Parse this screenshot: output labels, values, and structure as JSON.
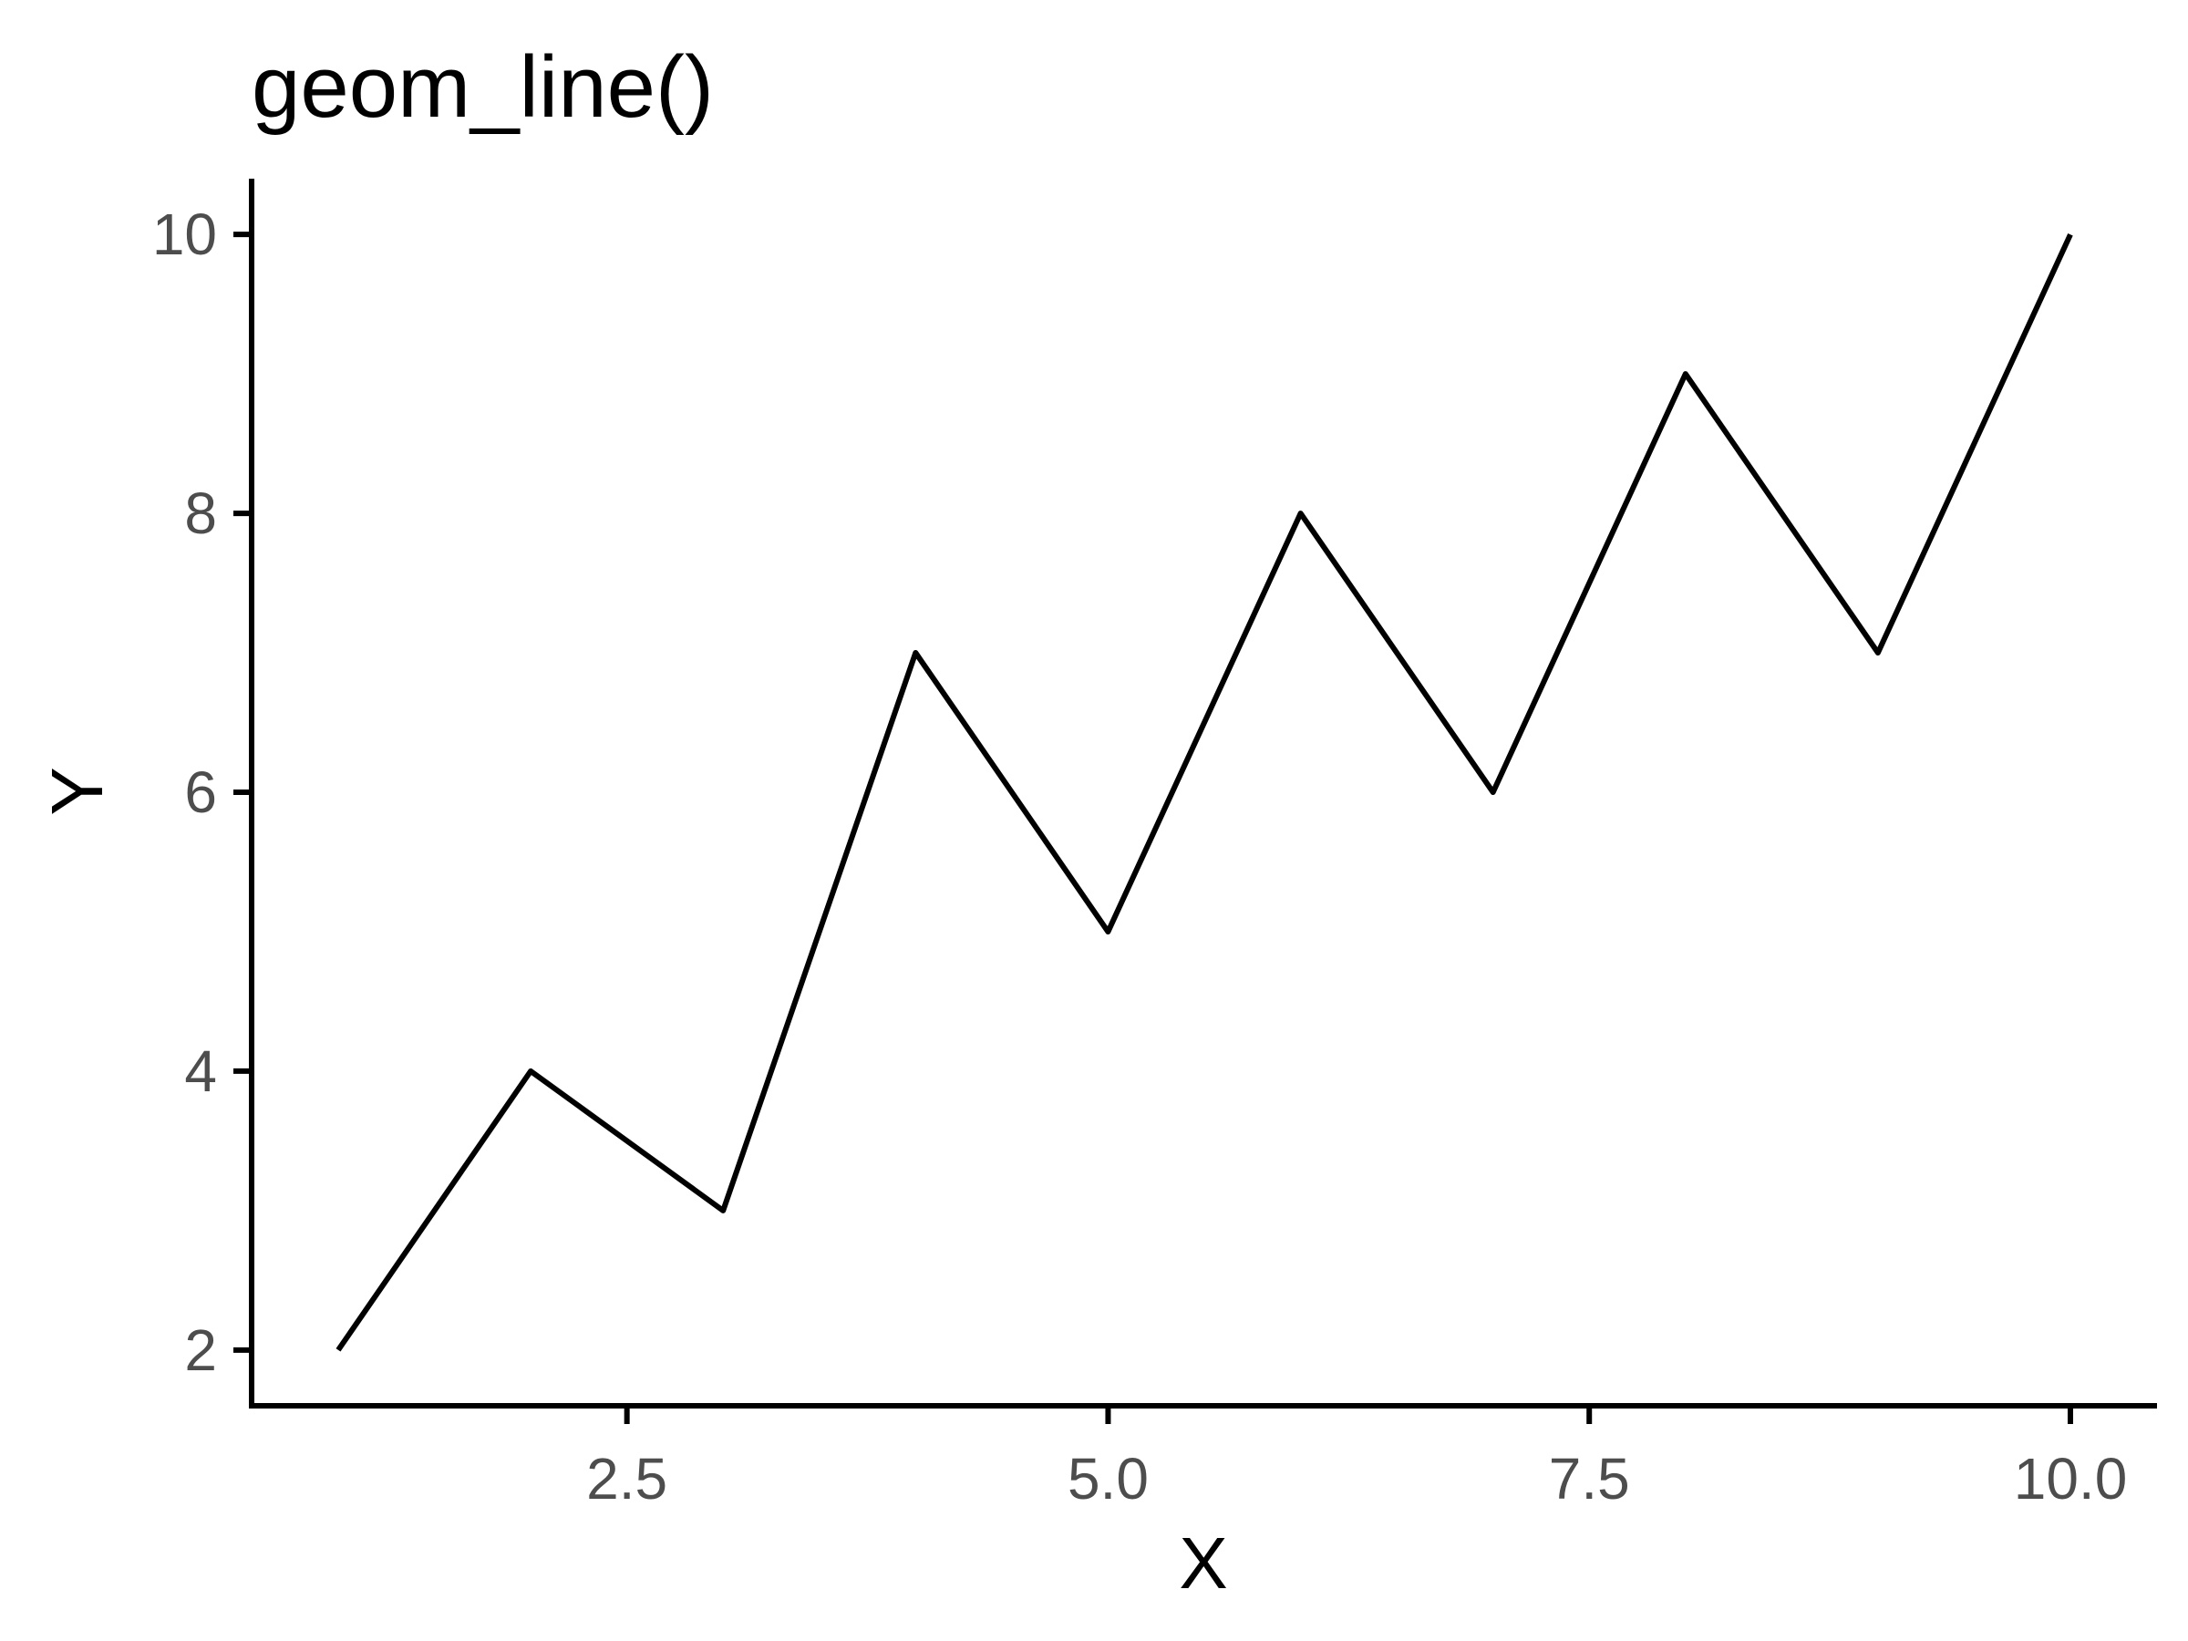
{
  "chart_data": {
    "type": "line",
    "title": "geom_line()",
    "xlabel": "X",
    "ylabel": "Y",
    "x": [
      1,
      2,
      3,
      4,
      5,
      6,
      7,
      8,
      9,
      10
    ],
    "series": [
      {
        "values": [
          2,
          4,
          3,
          7,
          5,
          8,
          6,
          9,
          7,
          10
        ]
      }
    ],
    "xlim": [
      0.55,
      10.45
    ],
    "ylim": [
      1.6,
      10.4
    ],
    "x_ticks": [
      {
        "value": 2.5,
        "label": "2.5"
      },
      {
        "value": 5.0,
        "label": "5.0"
      },
      {
        "value": 7.5,
        "label": "7.5"
      },
      {
        "value": 10.0,
        "label": "10.0"
      }
    ],
    "y_ticks": [
      {
        "value": 2,
        "label": "2"
      },
      {
        "value": 4,
        "label": "4"
      },
      {
        "value": 6,
        "label": "6"
      },
      {
        "value": 8,
        "label": "8"
      },
      {
        "value": 10,
        "label": "10"
      }
    ],
    "grid": false,
    "line_color": "#000000",
    "axis_color": "#000000",
    "tick_label_color": "#4d4d4d"
  }
}
